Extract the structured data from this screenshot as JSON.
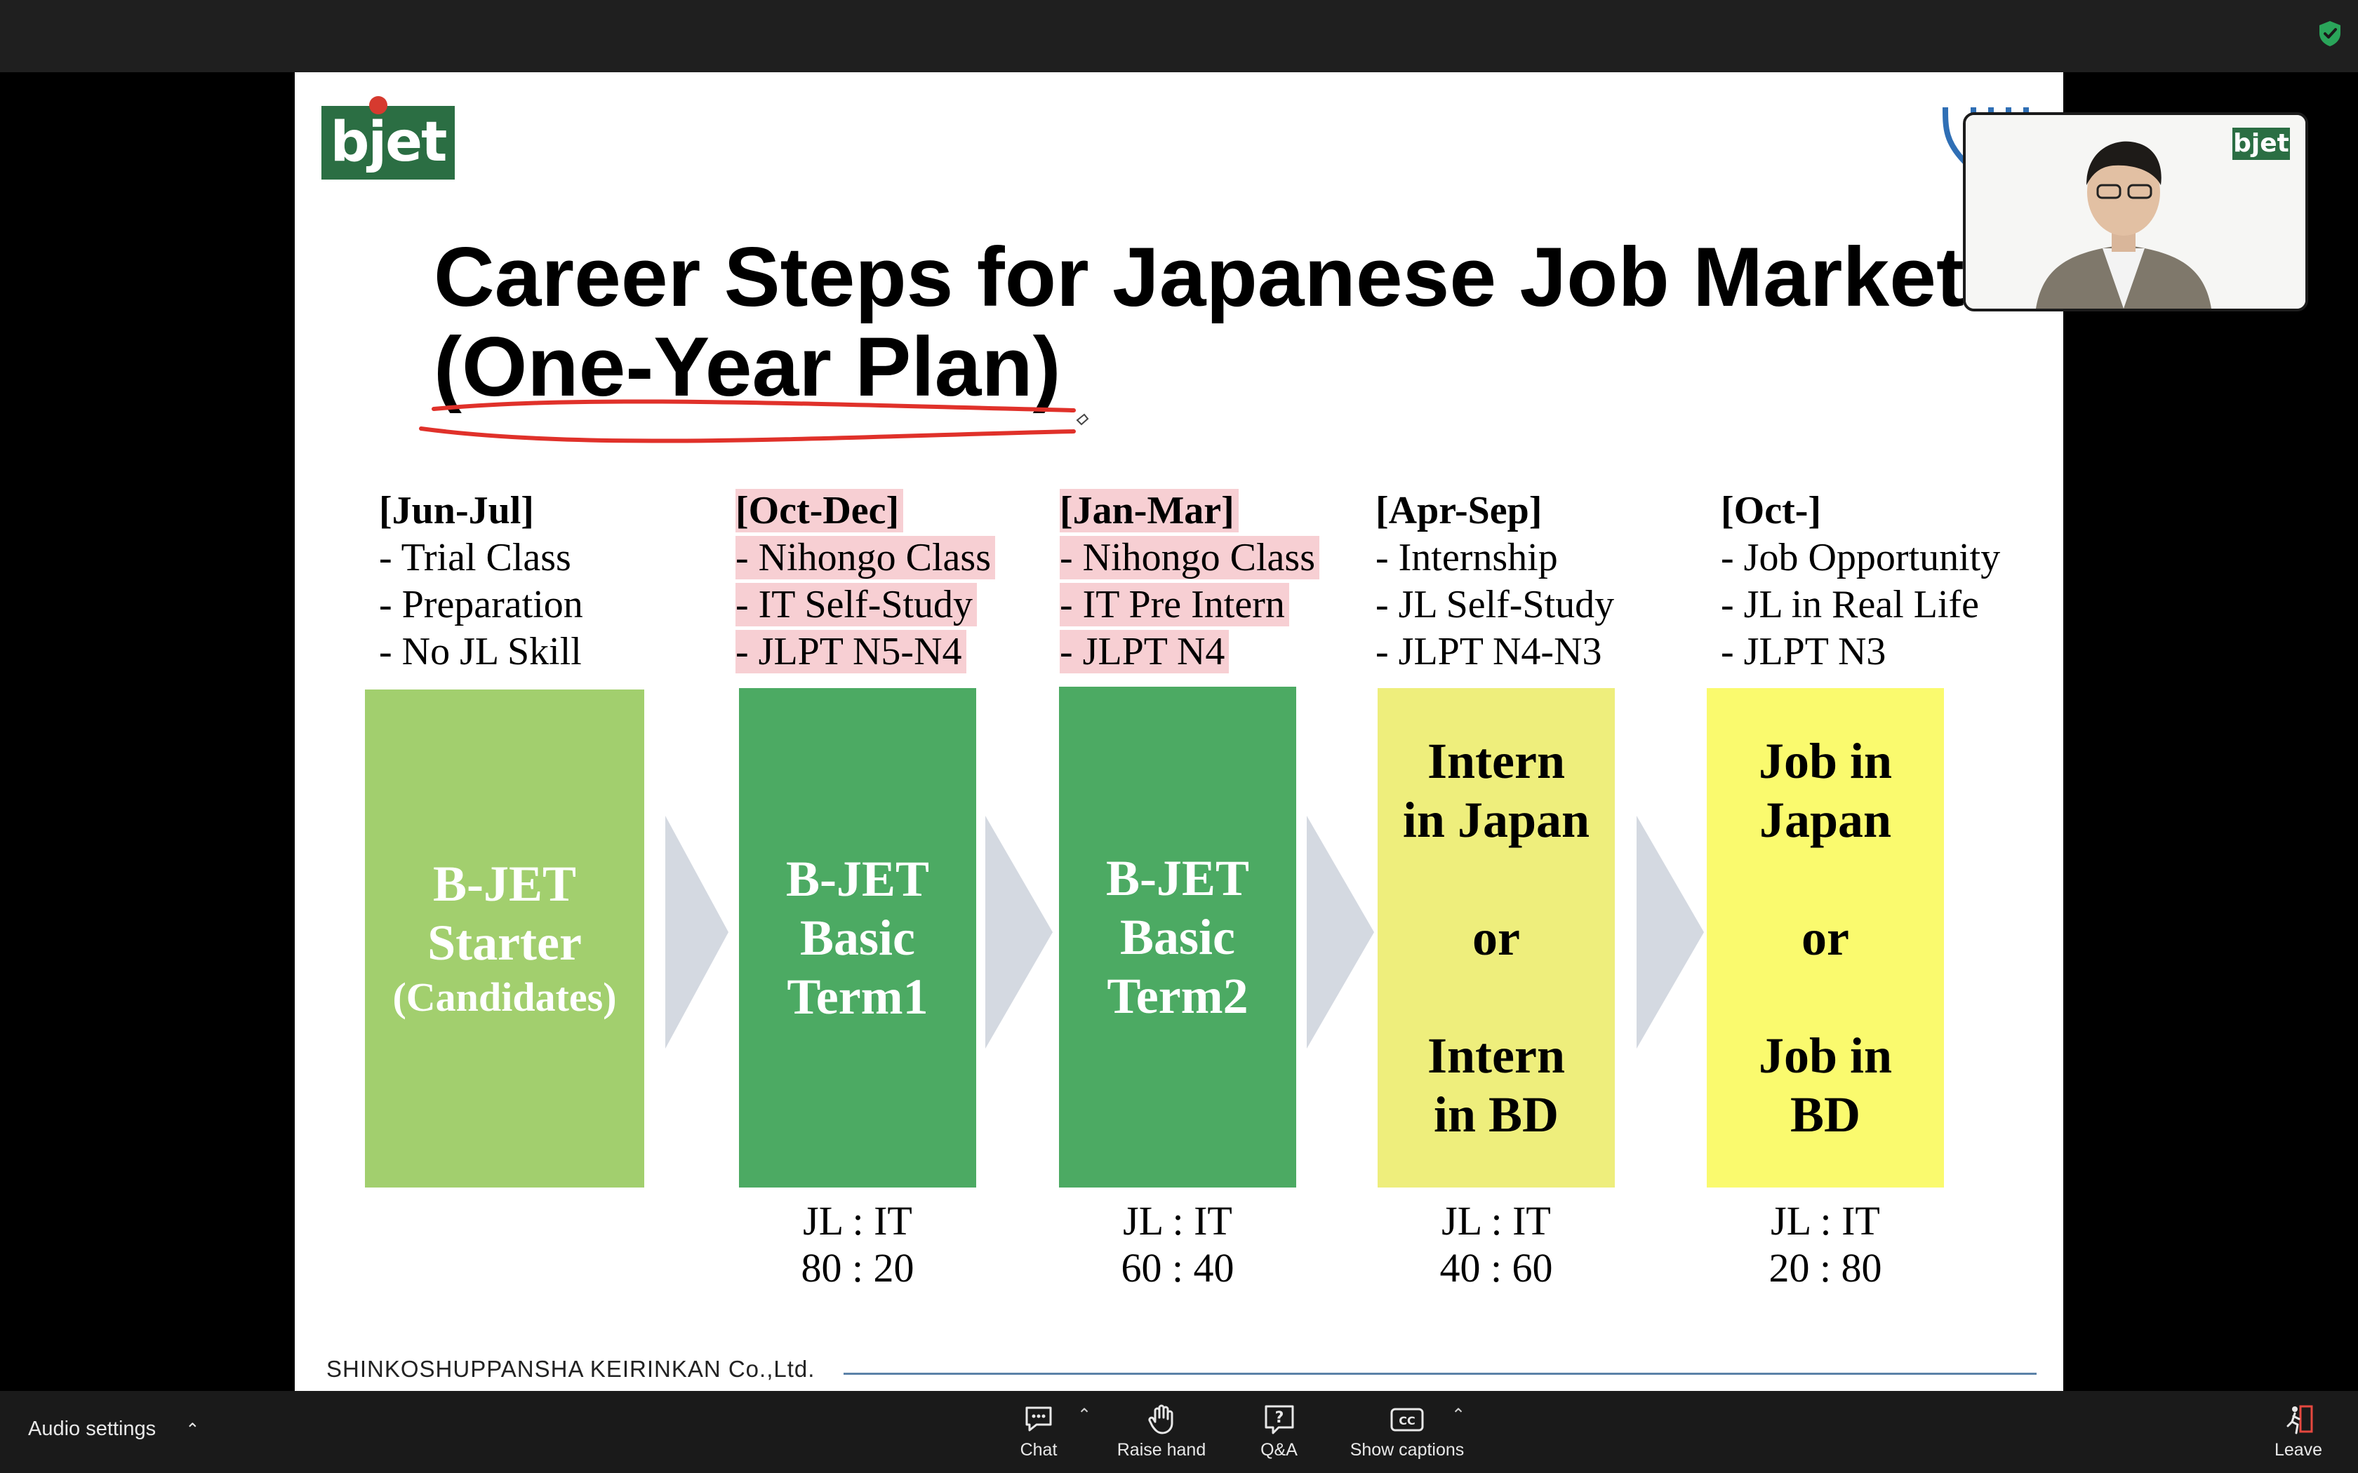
{
  "slide": {
    "logo": "bjet",
    "title_line1": "Career Steps for Japanese Job Market",
    "title_line2": "(One-Year Plan)",
    "columns": [
      {
        "period": "[Jun-Jul]",
        "items": [
          "- Trial Class",
          "- Preparation",
          "- No JL Skill"
        ],
        "box_text": "B-JET\nStarter",
        "box_sub": "(Candidates)",
        "ratio_label": "",
        "ratio_value": ""
      },
      {
        "period": "[Oct-Dec]",
        "items": [
          "- Nihongo Class",
          "- IT Self-Study",
          "- JLPT N5-N4"
        ],
        "box_text": "B-JET\nBasic\nTerm1",
        "ratio_label": "JL : IT",
        "ratio_value": "80 : 20"
      },
      {
        "period": "[Jan-Mar]",
        "items": [
          "- Nihongo Class",
          "- IT Pre Intern",
          "- JLPT N4"
        ],
        "box_text": "B-JET\nBasic\nTerm2",
        "ratio_label": "JL : IT",
        "ratio_value": "60 : 40"
      },
      {
        "period": "[Apr-Sep]",
        "items": [
          "- Internship",
          "- JL Self-Study",
          "- JLPT N4-N3"
        ],
        "box_text": "Intern\nin Japan\n\nor\n\nIntern\nin BD",
        "ratio_label": "JL : IT",
        "ratio_value": "40 : 60"
      },
      {
        "period": "[Oct-]",
        "items": [
          "- Job Opportunity",
          "- JL in Real Life",
          "- JLPT N3"
        ],
        "box_text": "Job in\nJapan\n\nor\n\nJob in\nBD",
        "ratio_label": "JL : IT",
        "ratio_value": "20 : 80"
      }
    ],
    "footer": "SHINKOSHUPPANSHA KEIRINKAN Co.,Ltd."
  },
  "video": {
    "logo": "bjet"
  },
  "toolbar": {
    "audio_settings": "Audio settings",
    "chat": "Chat",
    "raise_hand": "Raise hand",
    "qa": "Q&A",
    "captions": "Show captions",
    "leave": "Leave"
  },
  "colors": {
    "starter_box": "#a2cf6e",
    "basic_box": "#4caa63",
    "intern_box": "#eeee7c",
    "job_box": "#fafa6e",
    "highlight": "#f7cfd3",
    "arrow": "#d4d9e1",
    "annotation_red": "#e0312a",
    "leave_red": "#e5483f"
  }
}
